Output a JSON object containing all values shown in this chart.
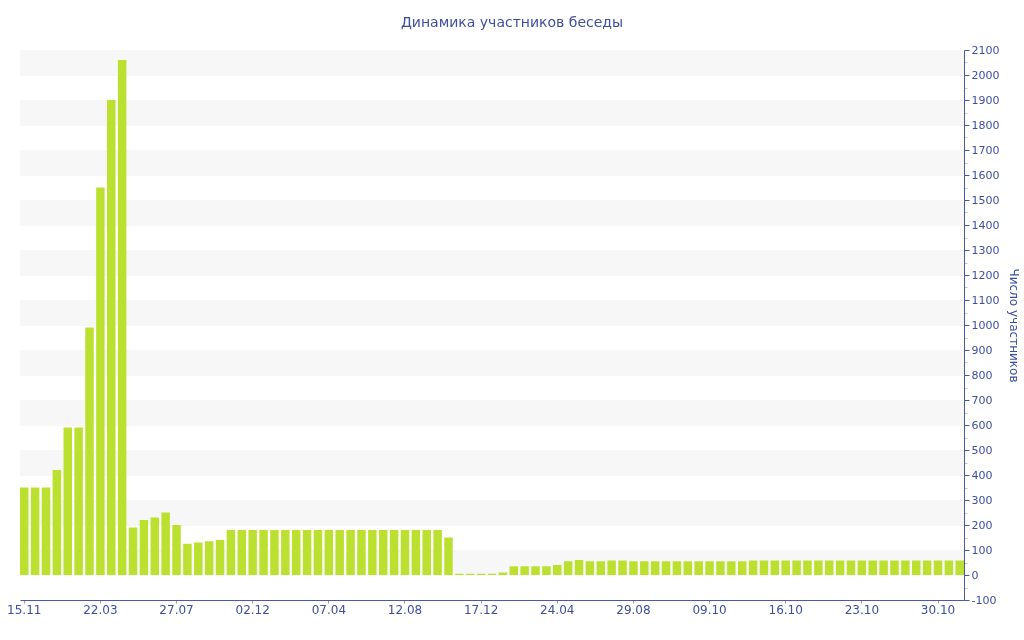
{
  "chart_data": {
    "type": "bar",
    "title": "Динамика участников беседы",
    "ylabel": "Число участников",
    "categories": [
      "15.11",
      null,
      null,
      null,
      null,
      null,
      null,
      "22.03",
      null,
      null,
      null,
      null,
      null,
      null,
      "27.07",
      null,
      null,
      null,
      null,
      null,
      null,
      "02.12",
      null,
      null,
      null,
      null,
      null,
      null,
      "07.04",
      null,
      null,
      null,
      null,
      null,
      null,
      "12.08",
      null,
      null,
      null,
      null,
      null,
      null,
      "17.12",
      null,
      null,
      null,
      null,
      null,
      null,
      "24.04",
      null,
      null,
      null,
      null,
      null,
      null,
      "29.08",
      null,
      null,
      null,
      null,
      null,
      null,
      "09.10",
      null,
      null,
      null,
      null,
      null,
      null,
      "16.10",
      null,
      null,
      null,
      null,
      null,
      null,
      "23.10",
      null,
      null,
      null,
      null,
      null,
      null,
      "30.10",
      null,
      null
    ],
    "values": [
      350,
      350,
      350,
      420,
      590,
      590,
      990,
      1550,
      1900,
      2060,
      190,
      220,
      230,
      250,
      200,
      125,
      130,
      135,
      140,
      180,
      180,
      180,
      180,
      180,
      180,
      180,
      180,
      180,
      180,
      180,
      180,
      180,
      180,
      180,
      180,
      180,
      180,
      180,
      180,
      150,
      5,
      5,
      5,
      5,
      10,
      35,
      35,
      35,
      35,
      40,
      55,
      60,
      55,
      55,
      58,
      58,
      55,
      55,
      55,
      55,
      55,
      55,
      55,
      55,
      55,
      55,
      55,
      58,
      58,
      58,
      58,
      58,
      58,
      58,
      58,
      58,
      58,
      58,
      58,
      58,
      58,
      58,
      58,
      58,
      58,
      58,
      58
    ],
    "color": "#bce030",
    "ylim": [
      -100,
      2100
    ],
    "yticks": [
      -100,
      {
        "value": -50,
        "label": null
      },
      0,
      {
        "value": 50,
        "label": null
      },
      100,
      {
        "value": 150,
        "label": null
      },
      200,
      {
        "value": 250,
        "label": null
      },
      300,
      {
        "value": 350,
        "label": null
      },
      400,
      {
        "value": 450,
        "label": null
      },
      500,
      {
        "value": 550,
        "label": null
      },
      600,
      {
        "value": 650,
        "label": null
      },
      700,
      {
        "value": 750,
        "label": null
      },
      800,
      {
        "value": 850,
        "label": null
      },
      900,
      {
        "value": 950,
        "label": null
      },
      1000,
      {
        "value": 1050,
        "label": null
      },
      1100,
      {
        "value": 1150,
        "label": null
      },
      1200,
      {
        "value": 1250,
        "label": null
      },
      1300,
      {
        "value": 1350,
        "label": null
      },
      1400,
      {
        "value": 1450,
        "label": null
      },
      1500,
      {
        "value": 1550,
        "label": null
      },
      1600,
      {
        "value": 1650,
        "label": null
      },
      1700,
      {
        "value": 1750,
        "label": null
      },
      1800,
      {
        "value": 1850,
        "label": null
      },
      1900,
      {
        "value": 1950,
        "label": null
      },
      2000,
      {
        "value": 2050,
        "label": null
      },
      2100
    ],
    "grid": "y"
  }
}
